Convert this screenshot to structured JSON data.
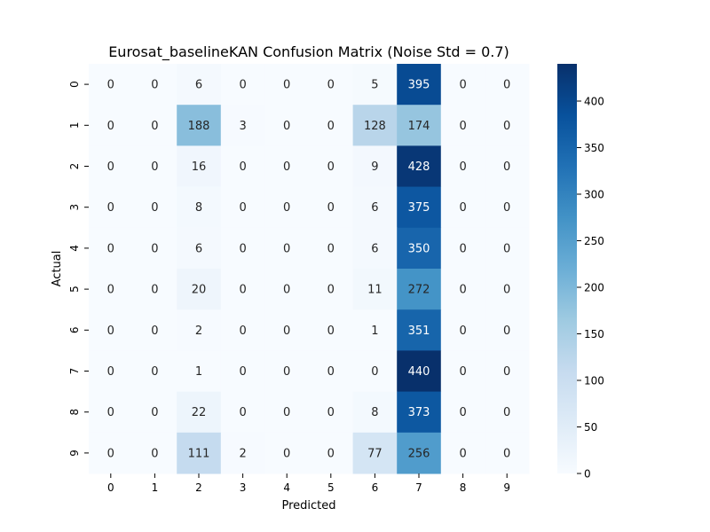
{
  "chart_data": {
    "type": "heatmap",
    "title": "Eurosat_baselineKAN Confusion Matrix (Noise Std = 0.7)",
    "xlabel": "Predicted",
    "ylabel": "Actual",
    "x_categories": [
      "0",
      "1",
      "2",
      "3",
      "4",
      "5",
      "6",
      "7",
      "8",
      "9"
    ],
    "y_categories": [
      "0",
      "1",
      "2",
      "3",
      "4",
      "5",
      "6",
      "7",
      "8",
      "9"
    ],
    "values": [
      [
        0,
        0,
        6,
        0,
        0,
        0,
        5,
        395,
        0,
        0
      ],
      [
        0,
        0,
        188,
        3,
        0,
        0,
        128,
        174,
        0,
        0
      ],
      [
        0,
        0,
        16,
        0,
        0,
        0,
        9,
        428,
        0,
        0
      ],
      [
        0,
        0,
        8,
        0,
        0,
        0,
        6,
        375,
        0,
        0
      ],
      [
        0,
        0,
        6,
        0,
        0,
        0,
        6,
        350,
        0,
        0
      ],
      [
        0,
        0,
        20,
        0,
        0,
        0,
        11,
        272,
        0,
        0
      ],
      [
        0,
        0,
        2,
        0,
        0,
        0,
        1,
        351,
        0,
        0
      ],
      [
        0,
        0,
        1,
        0,
        0,
        0,
        0,
        440,
        0,
        0
      ],
      [
        0,
        0,
        22,
        0,
        0,
        0,
        8,
        373,
        0,
        0
      ],
      [
        0,
        0,
        111,
        2,
        0,
        0,
        77,
        256,
        0,
        0
      ]
    ],
    "colormap": "Blues",
    "colorbar": {
      "range": [
        0,
        440
      ],
      "ticks": [
        0,
        50,
        100,
        150,
        200,
        250,
        300,
        350,
        400
      ]
    }
  }
}
